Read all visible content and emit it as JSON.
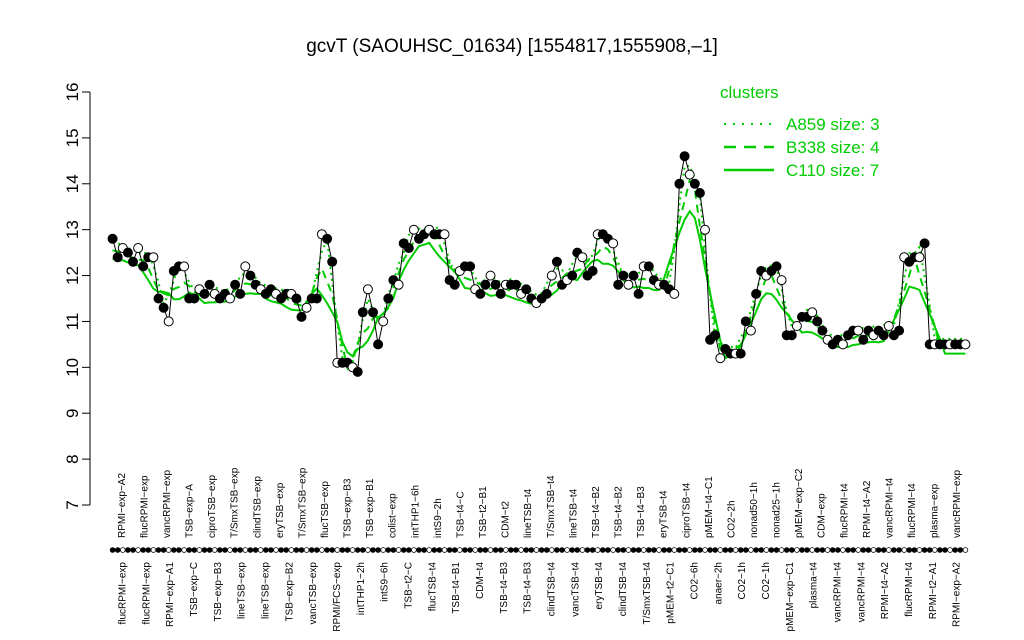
{
  "chart_data": {
    "type": "line",
    "title": "gcvT (SAOUHSC_01634) [1554817,1555908,–1]",
    "xlabel": "",
    "ylabel": "",
    "ylim": [
      7,
      16
    ],
    "yticks": [
      "7",
      "8",
      "9",
      "10",
      "11",
      "12",
      "13",
      "14",
      "15",
      "16"
    ],
    "legend": {
      "title": "clusters",
      "position": "top-right",
      "entries": [
        {
          "label": "A859 size: 3",
          "style": "dotted"
        },
        {
          "label": "B338 size: 4",
          "style": "dashed"
        },
        {
          "label": "C110 size: 7",
          "style": "solid"
        }
      ]
    },
    "colors": {
      "cluster_line": "#00cc00",
      "points": "#000000",
      "open_fill": "#ffffff"
    },
    "x_labels_top": [
      "RPMI−exp−A2",
      "flucRPMI−exp",
      "vancRPMI−exp",
      "TSB−exp−A",
      "ciproTSB−exp",
      "T/SmxTSB−exp",
      "clindTSB−exp",
      "eryTSB−exp",
      "T/SmxTSB−exp",
      "flucTSB−exp",
      "TSB−exp−B3",
      "TSB−exp−B1",
      "colist−exp",
      "intTHP1−6h",
      "intS9−2h",
      "TSB−t4−C",
      "TSB−t2−B1",
      "CDM−t2",
      "lineTSB−t4",
      "T/SmxTSB−t4",
      "lineTSB−t4",
      "TSB−t4−B2",
      "TSB−t4−B2",
      "TSB−t4−B3",
      "eryTSB−t4",
      "ciproTSB−t4",
      "pMEM−t4−C1",
      "CO2−2h",
      "nonad50−1h",
      "nonad25−1h",
      "pMEM−exp−C2",
      "CDM−exp",
      "flucRPMI−t4",
      "RPMI−t4−A2",
      "vancRPMI−t4",
      "flucRPMI−t4",
      "plasma−exp",
      "vancRPMI−exp"
    ],
    "x_labels_bottom": [
      "flucRPMI−exp",
      "flucRPMI−exp",
      "RPMI−exp−A1",
      "TSB−exp−C",
      "TSB−exp−B3",
      "lineTSB−exp",
      "lineTSB−exp",
      "TSB−exp−B2",
      "vancTSB−exp",
      "RPMI/FCS−exp",
      "intTHP1−2h",
      "intS9−6h",
      "TSB−t2−C",
      "flucTSB−t4",
      "TSB−t4−B1",
      "CDM−t4",
      "TSB−t4−B3",
      "TSB−t4−B3",
      "clindTSB−t4",
      "vancTSB−t4",
      "eryTSB−t4",
      "clindTSB−t4",
      "T/SmxTSB−t4",
      "pMEM−t2−C1",
      "CO2−6h",
      "anaer−2h",
      "CO2−1h",
      "CO2−1h",
      "pMEM−exp−C1",
      "plasma−t4",
      "vancRPMI−t4",
      "vancRPMI−t4",
      "RPMI−t4−A2",
      "flucRPMI−t4",
      "RPMI−t2−A1",
      "RPMI−exp−A2"
    ],
    "series": [
      {
        "x": [
          1,
          2,
          3,
          4,
          5,
          6,
          7,
          8,
          9,
          10,
          11,
          12,
          13,
          14,
          15,
          16,
          17,
          18,
          19,
          20,
          21,
          22,
          23,
          24,
          25,
          26,
          27,
          28,
          29,
          30,
          31,
          32,
          33,
          34,
          35,
          36,
          37,
          38,
          39,
          40,
          41,
          42,
          43,
          44,
          45,
          46,
          47,
          48,
          49,
          50,
          51,
          52,
          53,
          54,
          55,
          56,
          57,
          58,
          59,
          60,
          61,
          62,
          63,
          64,
          65,
          66,
          67,
          68,
          69,
          70,
          71,
          72,
          73,
          74,
          75,
          76,
          77,
          78,
          79,
          80,
          81,
          82,
          83,
          84,
          85,
          86,
          87,
          88,
          89,
          90,
          91,
          92,
          93,
          94,
          95,
          96,
          97,
          98,
          99,
          100,
          101,
          102,
          103,
          104,
          105,
          106,
          107,
          108,
          109,
          110,
          111,
          112,
          113,
          114,
          115,
          116,
          117,
          118,
          119,
          120,
          121,
          122,
          123,
          124,
          125,
          126,
          127,
          128,
          129,
          130,
          131,
          132,
          133,
          134,
          135,
          136,
          137,
          138,
          139,
          140,
          141,
          142,
          143,
          144,
          145,
          146,
          147,
          148,
          149,
          150,
          151,
          152,
          153,
          154,
          155,
          156,
          157,
          158,
          159,
          160,
          161,
          162,
          163,
          164,
          165,
          166,
          167,
          168
        ],
        "values": [
          12.8,
          12.4,
          12.6,
          12.5,
          12.3,
          12.6,
          12.2,
          12.4,
          12.4,
          11.5,
          11.3,
          11.0,
          12.1,
          12.2,
          12.2,
          11.5,
          11.5,
          11.7,
          11.6,
          11.8,
          11.6,
          11.5,
          11.6,
          11.5,
          11.8,
          11.6,
          12.2,
          12.0,
          11.8,
          11.7,
          11.6,
          11.7,
          11.6,
          11.5,
          11.6,
          11.6,
          11.5,
          11.1,
          11.3,
          11.5,
          11.5,
          12.9,
          12.8,
          12.3,
          10.1,
          10.1,
          10.1,
          10.0,
          9.9,
          11.2,
          11.7,
          11.2,
          10.5,
          11.0,
          11.5,
          11.9,
          11.8,
          12.7,
          12.6,
          13.0,
          12.8,
          12.9,
          13.0,
          12.9,
          12.9,
          12.9,
          11.9,
          11.8,
          12.1,
          12.2,
          12.2,
          11.7,
          11.6,
          11.8,
          12.0,
          11.8,
          11.6,
          11.8,
          11.8,
          11.8,
          11.6,
          11.7,
          11.5,
          11.4,
          11.5,
          11.6,
          12.0,
          12.3,
          11.8,
          11.9,
          12.0,
          12.5,
          12.4,
          12.0,
          12.1,
          12.9,
          12.9,
          12.8,
          12.7,
          11.8,
          12.0,
          11.8,
          12.0,
          11.6,
          12.2,
          12.2,
          11.9,
          11.8,
          11.8,
          11.7,
          11.6,
          14.0,
          14.6,
          14.2,
          14.0,
          13.8,
          13.0,
          10.6,
          10.7,
          10.2,
          10.4,
          10.3,
          10.3,
          10.3,
          11.0,
          10.8,
          11.6,
          12.1,
          12.0,
          12.1,
          12.2,
          11.9,
          10.7,
          10.7,
          10.9,
          11.1,
          11.1,
          11.2,
          11.0,
          10.8,
          10.6,
          10.5,
          10.6,
          10.5,
          10.7,
          10.8,
          10.8,
          10.6,
          10.8,
          10.7,
          10.8,
          10.7,
          10.9,
          10.7,
          10.8,
          12.4,
          12.3,
          12.4,
          12.4,
          12.7,
          10.5,
          10.5,
          10.5,
          10.5,
          10.5,
          10.5,
          10.5,
          10.5
        ]
      }
    ]
  }
}
